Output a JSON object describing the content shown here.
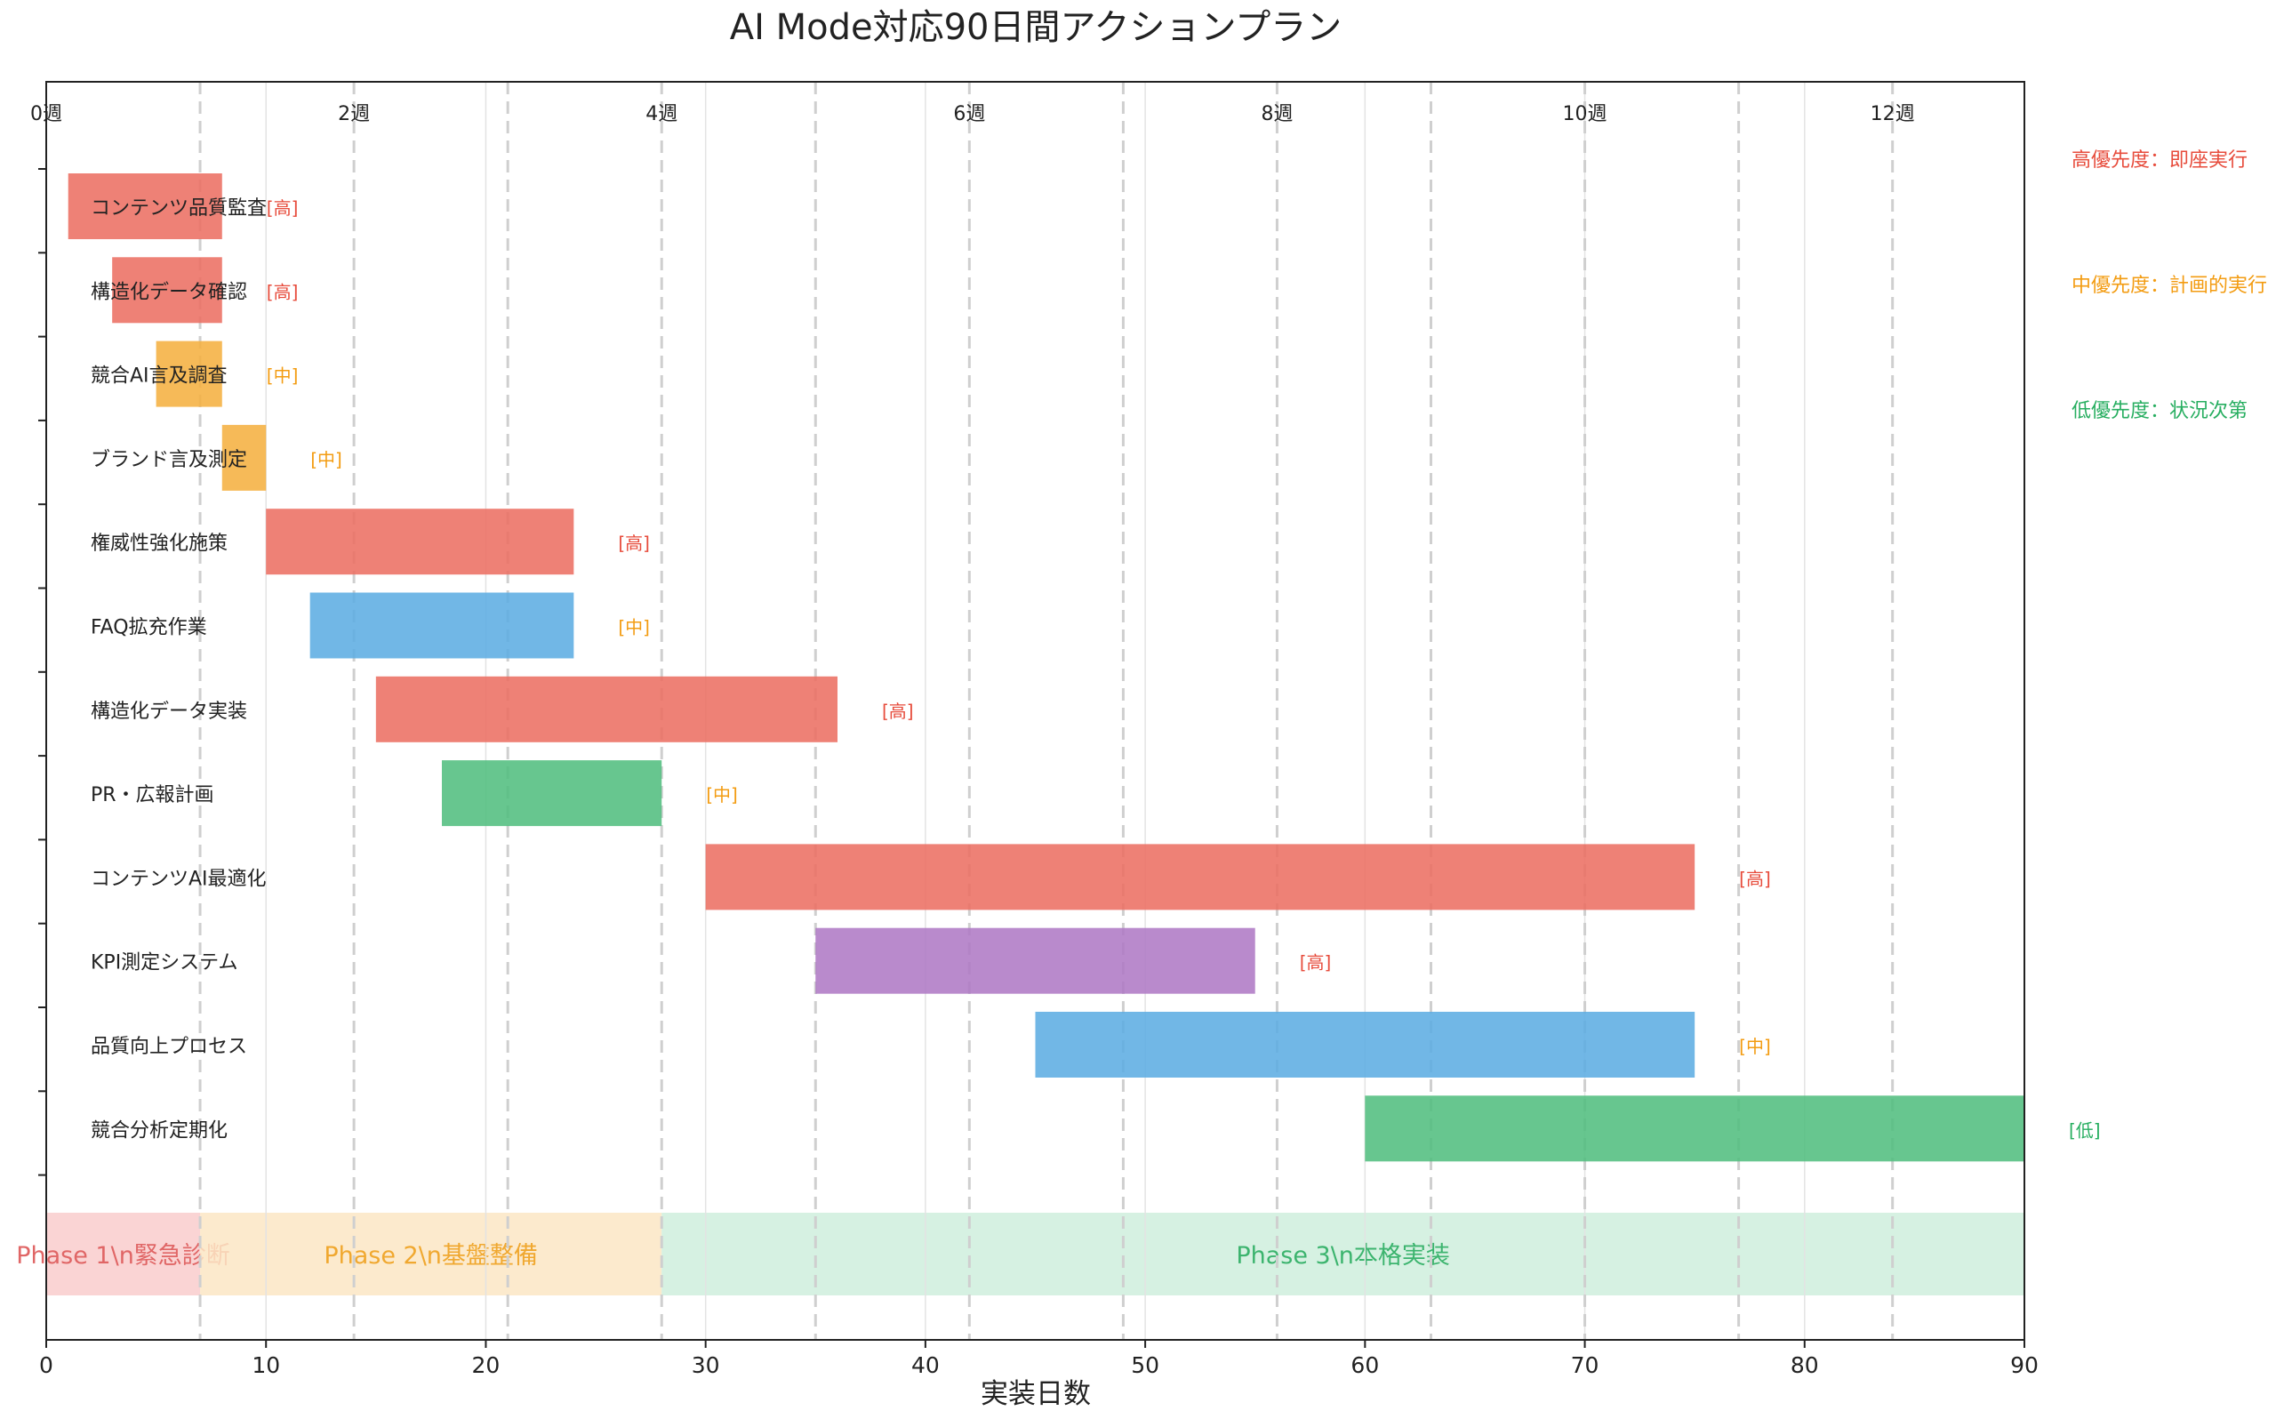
{
  "chart_data": {
    "type": "gantt",
    "title": "AI Mode対応90日間アクションプラン",
    "xlabel": "実装日数",
    "xlim": [
      0,
      90
    ],
    "x_ticks": [
      0,
      10,
      20,
      30,
      40,
      50,
      60,
      70,
      80,
      90
    ],
    "week_labels": [
      {
        "day": 0,
        "label": "0週"
      },
      {
        "day": 14,
        "label": "2週"
      },
      {
        "day": 28,
        "label": "4週"
      },
      {
        "day": 42,
        "label": "6週"
      },
      {
        "day": 56,
        "label": "8週"
      },
      {
        "day": 70,
        "label": "10週"
      },
      {
        "day": 84,
        "label": "12週"
      }
    ],
    "week_lines": [
      7,
      14,
      21,
      28,
      35,
      42,
      49,
      56,
      63,
      70,
      77,
      84
    ],
    "grid": true,
    "tasks": [
      {
        "name": "コンテンツ品質監査",
        "start": 1,
        "end": 8,
        "color": "#ec7063",
        "priority": "[高]",
        "priority_color": "#e74c3c"
      },
      {
        "name": "構造化データ確認",
        "start": 3,
        "end": 8,
        "color": "#ec7063",
        "priority": "[高]",
        "priority_color": "#e74c3c"
      },
      {
        "name": "競合AI言及調査",
        "start": 5,
        "end": 8,
        "color": "#f5b041",
        "priority": "[中]",
        "priority_color": "#f39c12"
      },
      {
        "name": "ブランド言及測定",
        "start": 8,
        "end": 10,
        "color": "#f5b041",
        "priority": "[中]",
        "priority_color": "#f39c12"
      },
      {
        "name": "権威性強化施策",
        "start": 10,
        "end": 24,
        "color": "#ec7063",
        "priority": "[高]",
        "priority_color": "#e74c3c"
      },
      {
        "name": "FAQ拡充作業",
        "start": 12,
        "end": 24,
        "color": "#5dade2",
        "priority": "[中]",
        "priority_color": "#f39c12"
      },
      {
        "name": "構造化データ実装",
        "start": 15,
        "end": 36,
        "color": "#ec7063",
        "priority": "[高]",
        "priority_color": "#e74c3c"
      },
      {
        "name": "PR・広報計画",
        "start": 18,
        "end": 28,
        "color": "#52be80",
        "priority": "[中]",
        "priority_color": "#f39c12"
      },
      {
        "name": "コンテンツAI最適化",
        "start": 30,
        "end": 75,
        "color": "#ec7063",
        "priority": "[高]",
        "priority_color": "#e74c3c"
      },
      {
        "name": "KPI測定システム",
        "start": 35,
        "end": 55,
        "color": "#af7ac5",
        "priority": "[高]",
        "priority_color": "#e74c3c"
      },
      {
        "name": "品質向上プロセス",
        "start": 45,
        "end": 75,
        "color": "#5dade2",
        "priority": "[中]",
        "priority_color": "#f39c12"
      },
      {
        "name": "競合分析定期化",
        "start": 60,
        "end": 90,
        "color": "#52be80",
        "priority": "[低]",
        "priority_color": "#27ae60"
      }
    ],
    "phases": [
      {
        "label": "Phase 1\\n緊急診断",
        "start": 0,
        "end": 7,
        "fill": "#f9cccc",
        "text_color": "#e06666"
      },
      {
        "label": "Phase 2\\n基盤整備",
        "start": 7,
        "end": 28,
        "fill": "#fce6c4",
        "text_color": "#f0a830"
      },
      {
        "label": "Phase 3\\n本格実装",
        "start": 28,
        "end": 90,
        "fill": "#cfeedd",
        "text_color": "#3cb46e"
      }
    ],
    "legend_position": "right",
    "legend": [
      {
        "label": "高優先度：即座実行",
        "color": "#e74c3c"
      },
      {
        "label": "中優先度：計画的実行",
        "color": "#f39c12"
      },
      {
        "label": "低優先度：状況次第",
        "color": "#27ae60"
      }
    ]
  }
}
